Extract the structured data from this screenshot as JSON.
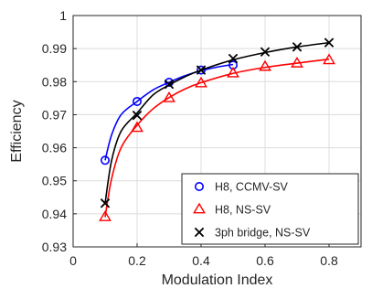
{
  "chart_data": {
    "type": "line",
    "xlabel": "Modulation Index",
    "ylabel": "Efficiency",
    "xlim": [
      0,
      0.9
    ],
    "ylim": [
      0.93,
      1
    ],
    "xticks": [
      0,
      0.2,
      0.4,
      0.6,
      0.8
    ],
    "xtick_labels": [
      "0",
      "0.2",
      "0.4",
      "0.6",
      "0.8"
    ],
    "yticks": [
      0.93,
      0.94,
      0.95,
      0.96,
      0.97,
      0.98,
      0.99,
      1
    ],
    "ytick_labels": [
      "0.93",
      "0.94",
      "0.95",
      "0.96",
      "0.97",
      "0.98",
      "0.99",
      "1"
    ],
    "grid": true,
    "legend_position": "bottom-right",
    "series": [
      {
        "name": "H8, CCMV-SV",
        "color": "#0000ff",
        "marker": "circle",
        "x": [
          0.1,
          0.2,
          0.3,
          0.4,
          0.5
        ],
        "y": [
          0.9562,
          0.974,
          0.9798,
          0.9835,
          0.985
        ],
        "curve_x": [
          0.1,
          0.12,
          0.15,
          0.2,
          0.25,
          0.3,
          0.35,
          0.4,
          0.45,
          0.5
        ],
        "curve_y": [
          0.9562,
          0.9638,
          0.97,
          0.974,
          0.9775,
          0.9798,
          0.9818,
          0.9833,
          0.9844,
          0.9852
        ]
      },
      {
        "name": "H8, NS-SV",
        "color": "#ff0000",
        "marker": "triangle",
        "x": [
          0.1,
          0.2,
          0.3,
          0.4,
          0.5,
          0.6,
          0.7,
          0.8
        ],
        "y": [
          0.939,
          0.966,
          0.975,
          0.9795,
          0.9825,
          0.9845,
          0.9855,
          0.9865
        ],
        "curve_x": [
          0.1,
          0.12,
          0.15,
          0.2,
          0.25,
          0.3,
          0.35,
          0.4,
          0.5,
          0.6,
          0.7,
          0.8
        ],
        "curve_y": [
          0.939,
          0.9505,
          0.96,
          0.9668,
          0.9718,
          0.9752,
          0.9778,
          0.9797,
          0.9825,
          0.9843,
          0.9856,
          0.9868
        ]
      },
      {
        "name": "3ph bridge, NS-SV",
        "color": "#000000",
        "marker": "x",
        "x": [
          0.1,
          0.2,
          0.3,
          0.4,
          0.5,
          0.6,
          0.7,
          0.8
        ],
        "y": [
          0.9432,
          0.9698,
          0.9792,
          0.9835,
          0.987,
          0.989,
          0.9905,
          0.9918
        ],
        "curve_x": [
          0.1,
          0.12,
          0.15,
          0.2,
          0.25,
          0.3,
          0.35,
          0.4,
          0.5,
          0.6,
          0.7,
          0.8
        ],
        "curve_y": [
          0.9432,
          0.956,
          0.965,
          0.9705,
          0.976,
          0.979,
          0.9815,
          0.9835,
          0.9866,
          0.9888,
          0.9905,
          0.9918
        ]
      }
    ]
  }
}
